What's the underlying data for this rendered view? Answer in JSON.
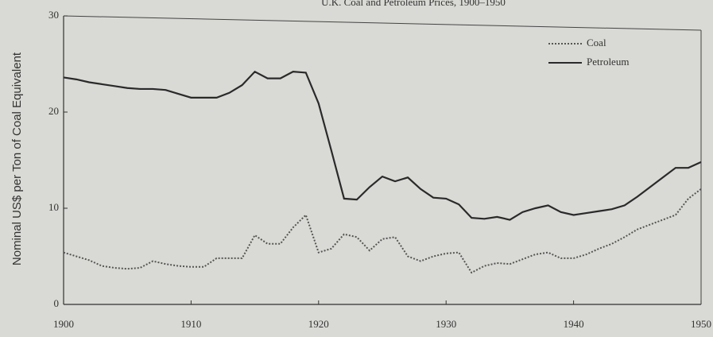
{
  "chart_data": {
    "type": "line",
    "title": "U.K. Coal and Petroleum Prices, 1900–1950",
    "y_label": "Nominal US$ per Ton of Coal Equivalent",
    "x": [
      1900,
      1901,
      1902,
      1903,
      1904,
      1905,
      1906,
      1907,
      1908,
      1909,
      1910,
      1911,
      1912,
      1913,
      1914,
      1915,
      1916,
      1917,
      1918,
      1919,
      1920,
      1921,
      1922,
      1923,
      1924,
      1925,
      1926,
      1927,
      1928,
      1929,
      1930,
      1931,
      1932,
      1933,
      1934,
      1935,
      1936,
      1937,
      1938,
      1939,
      1940,
      1941,
      1942,
      1943,
      1944,
      1945,
      1946,
      1947,
      1948,
      1949,
      1950
    ],
    "series": [
      {
        "name": "Coal",
        "color": "#555555",
        "dash": "dotted",
        "values": [
          5.4,
          5.0,
          4.6,
          4.0,
          3.8,
          3.7,
          3.8,
          4.5,
          4.2,
          4.0,
          3.9,
          3.9,
          4.8,
          4.8,
          4.8,
          7.2,
          6.3,
          6.3,
          8.0,
          9.3,
          5.4,
          5.8,
          7.3,
          7.0,
          5.6,
          6.8,
          7.0,
          5.0,
          4.5,
          5.0,
          5.3,
          5.4,
          3.3,
          4.0,
          4.3,
          4.2,
          4.7,
          5.2,
          5.4,
          4.8,
          4.8,
          5.2,
          5.8,
          6.3,
          7.0,
          7.8,
          8.3,
          8.8,
          9.3,
          11.0,
          12.0
        ]
      },
      {
        "name": "Petroleum",
        "color": "#2a2a2a",
        "dash": "solid",
        "values": [
          23.6,
          23.4,
          23.1,
          22.9,
          22.7,
          22.5,
          22.4,
          22.4,
          22.3,
          21.9,
          21.5,
          21.5,
          21.5,
          22.0,
          22.8,
          24.2,
          23.5,
          23.5,
          24.2,
          24.1,
          20.9,
          16.0,
          11.0,
          10.9,
          12.2,
          13.3,
          12.8,
          13.2,
          12.0,
          11.1,
          11.0,
          10.4,
          9.0,
          8.9,
          9.1,
          8.8,
          9.6,
          10.0,
          10.3,
          9.6,
          9.3,
          9.5,
          9.7,
          9.9,
          10.3,
          11.2,
          12.2,
          13.2,
          14.2,
          14.2,
          14.8
        ]
      }
    ],
    "xlim": [
      1900,
      1950
    ],
    "xticks": [
      1900,
      1910,
      1920,
      1930,
      1940,
      1950
    ],
    "ylim": [
      0,
      30
    ],
    "yticks": [
      0,
      10,
      20,
      30
    ],
    "legend": "upper right"
  }
}
